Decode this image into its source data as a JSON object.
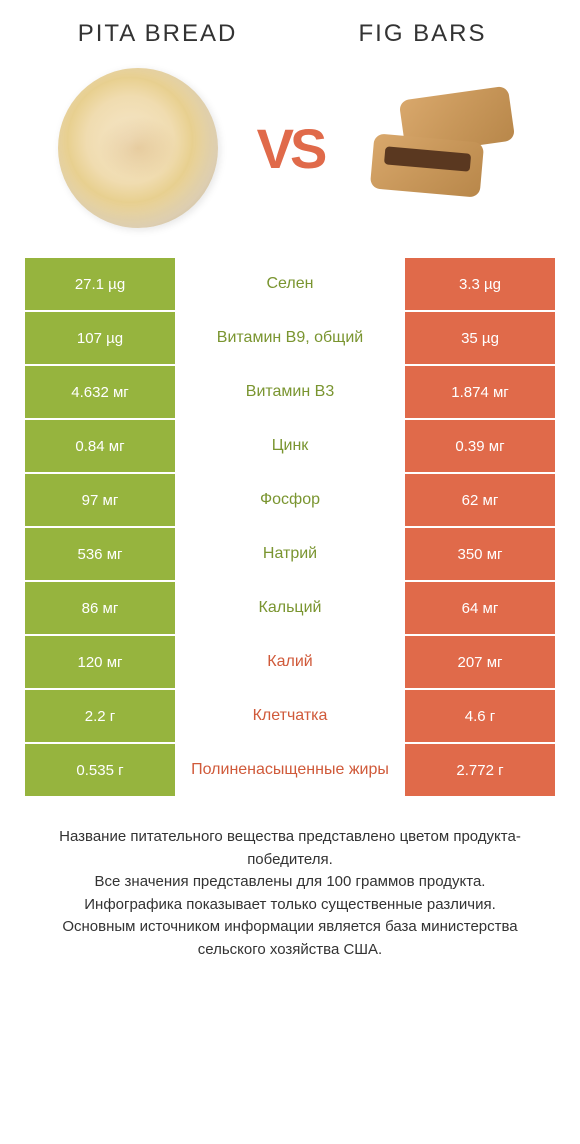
{
  "title_left": "PITA BREAD",
  "title_right": "FIG BARS",
  "vs": "VS",
  "colors": {
    "green": "#96b43e",
    "orange": "#e06a4a",
    "text_green": "#7a9530",
    "text_orange": "#d05a3a"
  },
  "rows": [
    {
      "left": "27.1 µg",
      "label": "Селен",
      "right": "3.3 µg",
      "winner": "left"
    },
    {
      "left": "107 µg",
      "label": "Витамин B9, общий",
      "right": "35 µg",
      "winner": "left"
    },
    {
      "left": "4.632 мг",
      "label": "Витамин B3",
      "right": "1.874 мг",
      "winner": "left"
    },
    {
      "left": "0.84 мг",
      "label": "Цинк",
      "right": "0.39 мг",
      "winner": "left"
    },
    {
      "left": "97 мг",
      "label": "Фосфор",
      "right": "62 мг",
      "winner": "left"
    },
    {
      "left": "536 мг",
      "label": "Натрий",
      "right": "350 мг",
      "winner": "left"
    },
    {
      "left": "86 мг",
      "label": "Кальций",
      "right": "64 мг",
      "winner": "left"
    },
    {
      "left": "120 мг",
      "label": "Калий",
      "right": "207 мг",
      "winner": "right"
    },
    {
      "left": "2.2 г",
      "label": "Клетчатка",
      "right": "4.6 г",
      "winner": "right"
    },
    {
      "left": "0.535 г",
      "label": "Полиненасыщенные жиры",
      "right": "2.772 г",
      "winner": "right"
    }
  ],
  "footer": [
    "Название питательного вещества представлено цветом продукта-победителя.",
    "Все значения представлены для 100 граммов продукта.",
    "Инфографика показывает только существенные различия.",
    "Основным источником информации является база министерства сельского хозяйства США."
  ]
}
